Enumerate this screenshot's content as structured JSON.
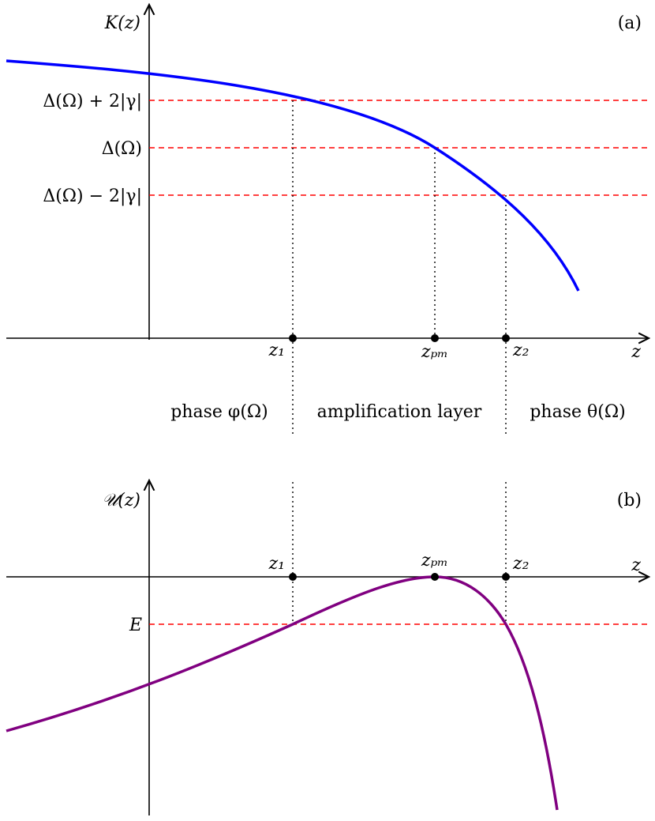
{
  "panel_a": {
    "tag": "(a)",
    "ylabel": "K(z)",
    "xlabel": "z",
    "levels": [
      "Δ(Ω) + 2|γ|",
      "Δ(Ω)",
      "Δ(Ω) − 2|γ|"
    ],
    "points": {
      "z1": "z₁",
      "zpm": "zₚₘ",
      "z2": "z₂"
    },
    "regions": [
      "phase φ(Ω)",
      "amplification layer",
      "phase θ(Ω)"
    ],
    "curve_color": "#0000ff",
    "level_color": "#ff0000"
  },
  "panel_b": {
    "tag": "(b)",
    "ylabel": "𝒰(z)",
    "xlabel": "z",
    "level": "E",
    "points": {
      "z1": "z₁",
      "zpm": "zₚₘ",
      "z2": "z₂"
    },
    "curve_color": "#800080",
    "level_color": "#ff0000"
  }
}
